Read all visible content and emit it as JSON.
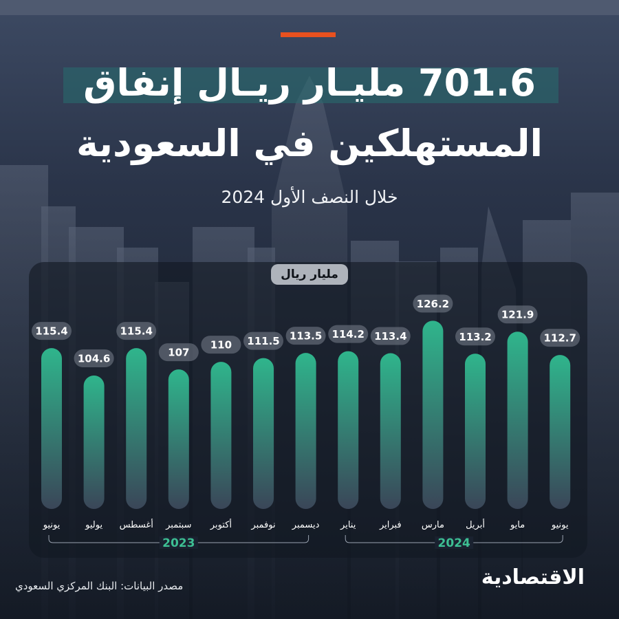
{
  "header": {
    "title_line1": "701.6 مليـار ريـال إنفاق",
    "title_line2": "المستهلكين في السعودية",
    "subtitle": "خلال النصف الأول 2024"
  },
  "chart_data": {
    "type": "bar",
    "unit_label": "مليار ريال",
    "categories": [
      "يونيو",
      "يوليو",
      "أغسطس",
      "سبتمبر",
      "أكتوبر",
      "نوفمبر",
      "ديسمبر",
      "يناير",
      "فبراير",
      "مارس",
      "أبريل",
      "مايو",
      "يونيو"
    ],
    "values": [
      115.4,
      104.6,
      115.4,
      107,
      110,
      111.5,
      113.5,
      114.2,
      113.4,
      126.2,
      113.2,
      121.9,
      112.7
    ],
    "value_labels": [
      "115.4",
      "104.6",
      "115.4",
      "107",
      "110",
      "111.5",
      "113.5",
      "114.2",
      "113.4",
      "126.2",
      "113.2",
      "121.9",
      "112.7"
    ],
    "year_groups": [
      {
        "label": "2023",
        "from_index": 0,
        "to_index": 6
      },
      {
        "label": "2024",
        "from_index": 7,
        "to_index": 12
      }
    ],
    "ylim": [
      0,
      130
    ],
    "grid": false,
    "bar_color_top": "#2fb58c",
    "bar_color_bottom": "#3a4658"
  },
  "footer": {
    "source": "مصدر البيانات: البنك المركزي السعودي",
    "logo": "الاقتصادية"
  },
  "colors": {
    "accent": "#e8511f",
    "title_highlight": "#266e70",
    "year_color": "#3dbf93"
  }
}
